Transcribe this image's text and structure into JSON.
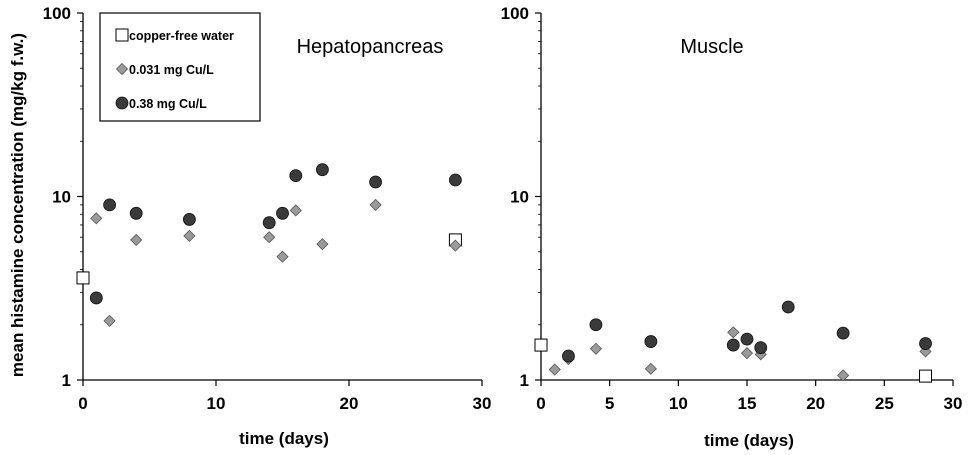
{
  "colors": {
    "background": "#ffffff",
    "axis": "#000000",
    "square_fill": "#ffffff",
    "diamond_fill": "#9a9a9a",
    "circle_fill": "#3a3a3a"
  },
  "legend": {
    "placement": "top-left of left panel",
    "entries": [
      {
        "label": "copper-free water",
        "marker": "square"
      },
      {
        "label": "0.031 mg Cu/L",
        "marker": "diamond"
      },
      {
        "label": "0.38 mg Cu/L",
        "marker": "circle"
      }
    ]
  },
  "chart_data": [
    {
      "type": "scatter",
      "title": "Hepatopancreas",
      "xlabel": "time (days)",
      "ylabel": "mean histamine concentration  (mg/kg f.w.)",
      "xlim": [
        0,
        30
      ],
      "ylim": [
        1,
        100
      ],
      "yscale": "log",
      "xticks": [
        "0",
        "10",
        "20",
        "30"
      ],
      "yticks": [
        "1",
        "10",
        "100"
      ],
      "grid": false,
      "series": [
        {
          "name": "copper-free water",
          "marker": "square",
          "points": [
            {
              "x": 0,
              "y": 3.6
            },
            {
              "x": 28,
              "y": 5.8
            }
          ]
        },
        {
          "name": "0.031 mg Cu/L",
          "marker": "diamond",
          "points": [
            {
              "x": 1,
              "y": 7.6
            },
            {
              "x": 2,
              "y": 2.1
            },
            {
              "x": 4,
              "y": 5.8
            },
            {
              "x": 8,
              "y": 6.1
            },
            {
              "x": 14,
              "y": 6.0
            },
            {
              "x": 15,
              "y": 4.7
            },
            {
              "x": 16,
              "y": 8.4
            },
            {
              "x": 18,
              "y": 5.5
            },
            {
              "x": 22,
              "y": 9.0
            },
            {
              "x": 28,
              "y": 5.4
            }
          ]
        },
        {
          "name": "0.38 mg Cu/L",
          "marker": "circle",
          "points": [
            {
              "x": 1,
              "y": 2.8
            },
            {
              "x": 2,
              "y": 9.0
            },
            {
              "x": 4,
              "y": 8.1
            },
            {
              "x": 8,
              "y": 7.5
            },
            {
              "x": 14,
              "y": 7.2
            },
            {
              "x": 15,
              "y": 8.1
            },
            {
              "x": 16,
              "y": 13.0
            },
            {
              "x": 18,
              "y": 14.0
            },
            {
              "x": 22,
              "y": 12.0
            },
            {
              "x": 28,
              "y": 12.3
            }
          ]
        }
      ]
    },
    {
      "type": "scatter",
      "title": "Muscle",
      "xlabel": "time (days)",
      "ylabel": "",
      "xlim": [
        0,
        30
      ],
      "ylim": [
        1,
        100
      ],
      "yscale": "log",
      "xticks": [
        "0",
        "5",
        "10",
        "15",
        "20",
        "25",
        "30"
      ],
      "yticks": [
        "1",
        "10",
        "100"
      ],
      "grid": false,
      "series": [
        {
          "name": "copper-free water",
          "marker": "square",
          "points": [
            {
              "x": 0,
              "y": 1.55
            },
            {
              "x": 28,
              "y": 1.05
            }
          ]
        },
        {
          "name": "0.031 mg Cu/L",
          "marker": "diamond",
          "points": [
            {
              "x": 1,
              "y": 1.14
            },
            {
              "x": 2,
              "y": 1.3
            },
            {
              "x": 4,
              "y": 1.48
            },
            {
              "x": 8,
              "y": 1.15
            },
            {
              "x": 14,
              "y": 1.82
            },
            {
              "x": 15,
              "y": 1.4
            },
            {
              "x": 16,
              "y": 1.38
            },
            {
              "x": 22,
              "y": 1.06
            },
            {
              "x": 28,
              "y": 1.43
            }
          ]
        },
        {
          "name": "0.38 mg Cu/L",
          "marker": "circle",
          "points": [
            {
              "x": 2,
              "y": 1.35
            },
            {
              "x": 4,
              "y": 2.0
            },
            {
              "x": 8,
              "y": 1.62
            },
            {
              "x": 14,
              "y": 1.55
            },
            {
              "x": 15,
              "y": 1.67
            },
            {
              "x": 16,
              "y": 1.5
            },
            {
              "x": 18,
              "y": 2.5
            },
            {
              "x": 22,
              "y": 1.8
            },
            {
              "x": 28,
              "y": 1.58
            }
          ]
        }
      ]
    }
  ]
}
